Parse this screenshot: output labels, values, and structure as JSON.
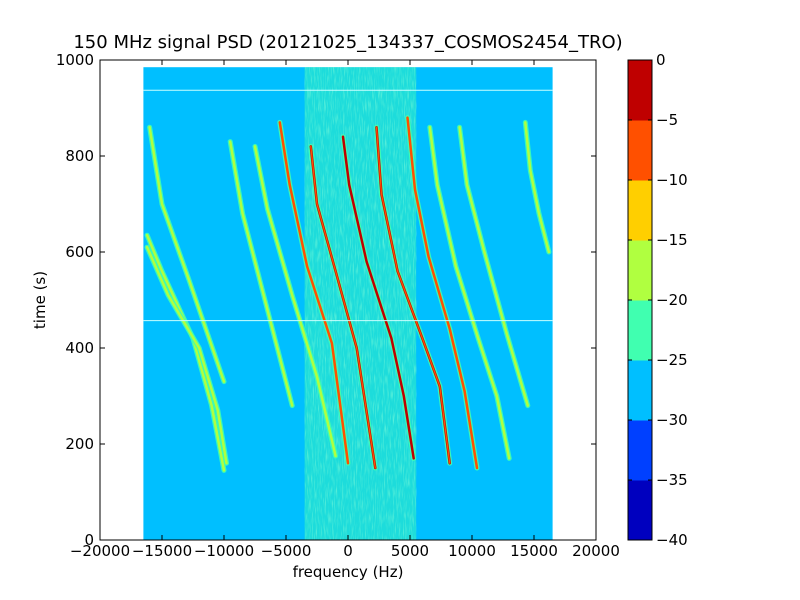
{
  "chart_data": {
    "type": "heatmap",
    "title": "150 MHz signal PSD (20121025_134337_COSMOS2454_TRO)",
    "xlabel": "frequency (Hz)",
    "ylabel": "time (s)",
    "xlim": [
      -20000,
      20000
    ],
    "ylim": [
      0,
      1000
    ],
    "x_ticks": [
      -20000,
      -15000,
      -10000,
      -5000,
      0,
      5000,
      10000,
      15000,
      20000
    ],
    "y_ticks": [
      0,
      200,
      400,
      600,
      800,
      1000
    ],
    "x_tick_labels": [
      "−20000",
      "−15000",
      "−10000",
      "−5000",
      "0",
      "5000",
      "10000",
      "15000",
      "20000"
    ],
    "y_tick_labels": [
      "0",
      "200",
      "400",
      "600",
      "800",
      "1000"
    ],
    "data_extent": {
      "x": [
        -16500,
        16500
      ],
      "y": [
        0,
        985
      ]
    },
    "background_level_db": -27.5,
    "center_band": {
      "x": [
        -3500,
        5500
      ],
      "level_db": -22.5
    },
    "colorbar": {
      "levels": [
        -40,
        -35,
        -30,
        -25,
        -20,
        -15,
        -10,
        -5,
        0
      ],
      "tick_labels": [
        "−40",
        "−35",
        "−30",
        "−25",
        "−20",
        "−15",
        "−10",
        "−5",
        "0"
      ],
      "colors": [
        "#0000bf",
        "#0040ff",
        "#00bfff",
        "#40ffb0",
        "#b0ff40",
        "#ffcf00",
        "#ff5000",
        "#bf0000"
      ]
    },
    "traces": [
      {
        "name": "",
        "points": [
          [
            -16200,
            635
          ],
          [
            -15000,
            560
          ],
          [
            -12500,
            420
          ],
          [
            -11000,
            280
          ],
          [
            -10000,
            145
          ]
        ],
        "level_db": -22.5
      },
      {
        "name": "",
        "points": [
          [
            -16200,
            610
          ],
          [
            -14500,
            510
          ],
          [
            -12000,
            400
          ],
          [
            -10500,
            270
          ],
          [
            -9800,
            160
          ]
        ],
        "level_db": -22.5
      },
      {
        "name": "",
        "points": [
          [
            -16000,
            860
          ],
          [
            -15000,
            700
          ],
          [
            -12800,
            540
          ],
          [
            -10000,
            330
          ]
        ],
        "level_db": -22.5
      },
      {
        "name": "",
        "points": [
          [
            -9500,
            830
          ],
          [
            -8500,
            680
          ],
          [
            -6500,
            480
          ],
          [
            -4500,
            280
          ]
        ],
        "level_db": -22.5
      },
      {
        "name": "",
        "points": [
          [
            -7500,
            820
          ],
          [
            -6500,
            690
          ],
          [
            -4500,
            510
          ],
          [
            -2500,
            340
          ],
          [
            -1000,
            175
          ]
        ],
        "level_db": -22.5
      },
      {
        "name": "",
        "points": [
          [
            -5500,
            870
          ],
          [
            -4700,
            740
          ],
          [
            -3300,
            570
          ],
          [
            -1300,
            410
          ],
          [
            0,
            160
          ]
        ],
        "level_db": -15
      },
      {
        "name": "",
        "points": [
          [
            -3000,
            820
          ],
          [
            -2500,
            700
          ],
          [
            -1000,
            560
          ],
          [
            700,
            400
          ],
          [
            2200,
            150
          ]
        ],
        "level_db": -10
      },
      {
        "name": "",
        "points": [
          [
            -400,
            840
          ],
          [
            100,
            740
          ],
          [
            1500,
            580
          ],
          [
            3500,
            420
          ],
          [
            4500,
            300
          ],
          [
            5300,
            170
          ]
        ],
        "level_db": -5
      },
      {
        "name": "",
        "points": [
          [
            2300,
            860
          ],
          [
            2700,
            720
          ],
          [
            4000,
            560
          ],
          [
            6000,
            420
          ],
          [
            7400,
            320
          ],
          [
            8200,
            160
          ]
        ],
        "level_db": -10
      },
      {
        "name": "",
        "points": [
          [
            4800,
            880
          ],
          [
            5400,
            730
          ],
          [
            6500,
            590
          ],
          [
            8200,
            440
          ],
          [
            9400,
            310
          ],
          [
            10400,
            150
          ]
        ],
        "level_db": -15
      },
      {
        "name": "",
        "points": [
          [
            6600,
            860
          ],
          [
            7200,
            740
          ],
          [
            8700,
            570
          ],
          [
            10500,
            420
          ],
          [
            12000,
            300
          ],
          [
            13000,
            170
          ]
        ],
        "level_db": -22.5
      },
      {
        "name": "",
        "points": [
          [
            9000,
            860
          ],
          [
            9600,
            740
          ],
          [
            11000,
            600
          ],
          [
            12800,
            430
          ],
          [
            14500,
            280
          ]
        ],
        "level_db": -22.5
      },
      {
        "name": "",
        "points": [
          [
            14300,
            870
          ],
          [
            14700,
            770
          ],
          [
            15400,
            680
          ],
          [
            16200,
            600
          ]
        ],
        "level_db": -22.5
      }
    ],
    "horizontal_lines": [
      {
        "y": 937,
        "color": "#c8ffff"
      },
      {
        "y": 457,
        "color": "#c8ffff"
      }
    ]
  }
}
